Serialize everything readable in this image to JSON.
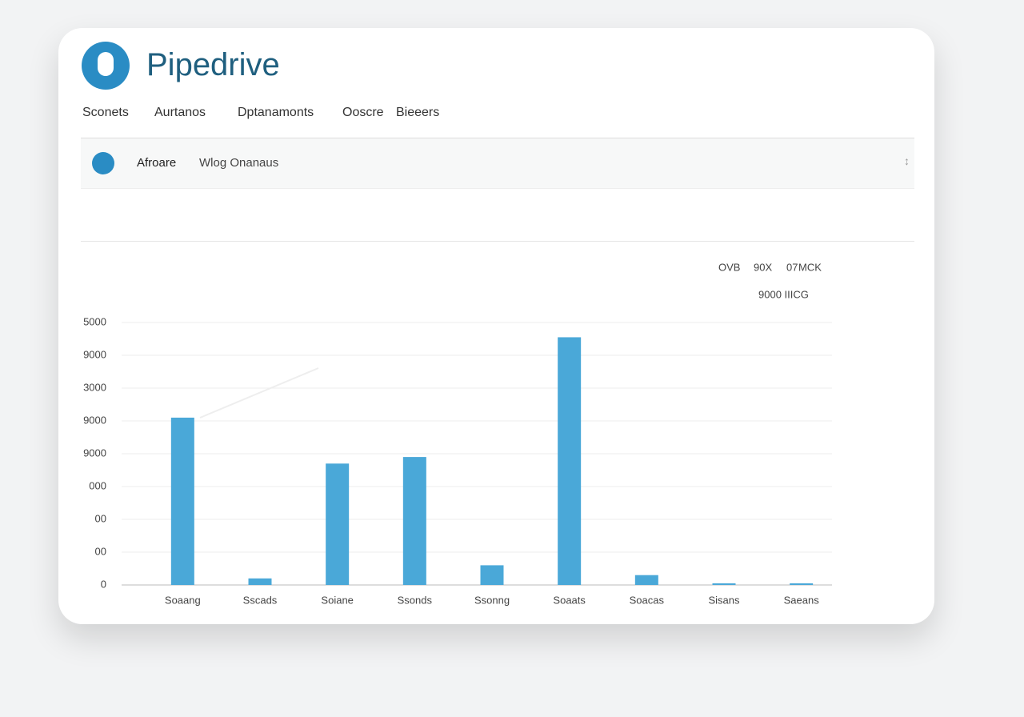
{
  "header": {
    "title": "Pipedrive"
  },
  "nav": [
    "Sconets",
    "Aurtanos",
    "Dptanamonts",
    "Ooscre",
    "Bieeers"
  ],
  "search": {
    "label": "Afroare",
    "placeholder": "Wlog Onanaus"
  },
  "chart_data": {
    "type": "bar",
    "annotations": [
      "OVB",
      "90X",
      "07",
      "MCK",
      "9000 IIICG"
    ],
    "categories": [
      "Soaang",
      "Sscads",
      "Soiane",
      "Ssonds",
      "Ssonng",
      "Soaats",
      "Soacas",
      "Sisans",
      "Saeans"
    ],
    "values": [
      5.1,
      0.2,
      3.7,
      3.9,
      0.6,
      7.55,
      0.3,
      0.05,
      0.05
    ],
    "color": "#4aa8d8",
    "ylim": [
      0,
      8
    ],
    "yticks": [
      0,
      {
        "value": 1,
        "label": "00"
      },
      {
        "value": 2,
        "label": "00"
      },
      {
        "value": 3,
        "label": "000"
      },
      {
        "value": 4,
        "label": "9000"
      },
      {
        "value": 5,
        "label": "9000"
      },
      {
        "value": 6,
        "label": "3000"
      },
      {
        "value": 7,
        "label": "9000"
      },
      {
        "value": 8,
        "label": "5000"
      }
    ],
    "grid": true
  }
}
